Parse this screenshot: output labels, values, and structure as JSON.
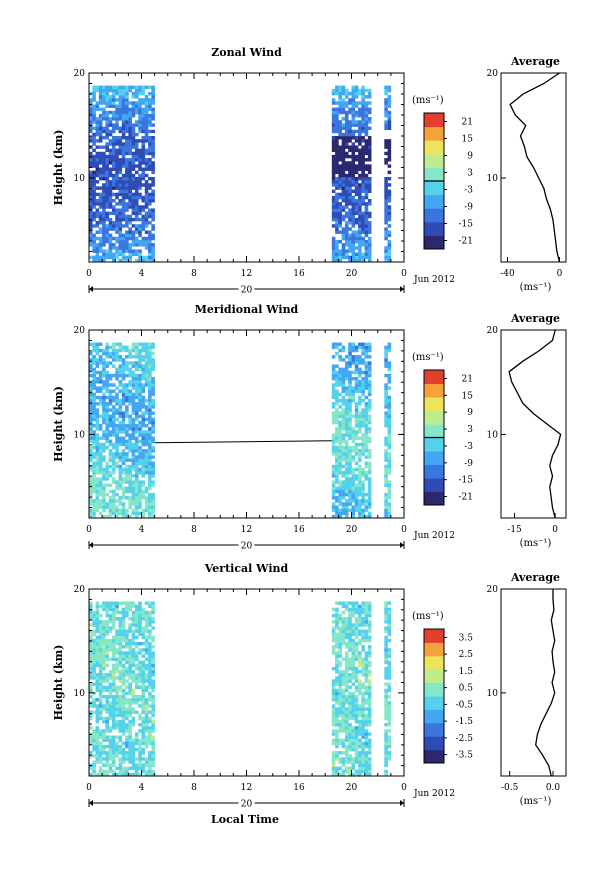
{
  "figure": {
    "xlabel": "Local Time",
    "date_axis": {
      "day_label": "20",
      "month_label": "Jun 2012"
    }
  },
  "chart_data": [
    {
      "type": "heatmap",
      "title": "Zonal Wind",
      "ylabel": "Height (km)",
      "xlabel": "",
      "x_ticks": [
        "0",
        "4",
        "8",
        "12",
        "16",
        "20",
        "0"
      ],
      "y_ticks": [
        "10",
        "20"
      ],
      "xlim": [
        0,
        24
      ],
      "ylim": [
        2,
        20
      ],
      "data_hours": [
        [
          0,
          5
        ],
        [
          18.5,
          21.5
        ],
        [
          22.5,
          23
        ]
      ],
      "colorbar": {
        "unit": "(ms⁻¹)",
        "ticks": [
          "21",
          "15",
          "9",
          "3",
          "-3",
          "-9",
          "-15",
          "-21"
        ],
        "range": [
          -24,
          24
        ]
      },
      "profile": {
        "title": "Average",
        "xlabel": "(ms⁻¹)",
        "x_ticks": [
          "-40",
          "0"
        ],
        "xlim": [
          -45,
          5
        ],
        "points": [
          [
            0,
            2
          ],
          [
            -2,
            3
          ],
          [
            -3,
            4
          ],
          [
            -4,
            5
          ],
          [
            -5,
            6
          ],
          [
            -7,
            7
          ],
          [
            -10,
            8
          ],
          [
            -12,
            9
          ],
          [
            -16,
            10
          ],
          [
            -20,
            11
          ],
          [
            -25,
            12
          ],
          [
            -27,
            13
          ],
          [
            -30,
            14
          ],
          [
            -26,
            15
          ],
          [
            -34,
            16
          ],
          [
            -38,
            17
          ],
          [
            -28,
            18
          ],
          [
            -12,
            19
          ],
          [
            0,
            20
          ]
        ]
      }
    },
    {
      "type": "heatmap",
      "title": "Meridional Wind",
      "ylabel": "Height (km)",
      "xlabel": "",
      "x_ticks": [
        "0",
        "4",
        "8",
        "12",
        "16",
        "20",
        "0"
      ],
      "y_ticks": [
        "10",
        "20"
      ],
      "xlim": [
        0,
        24
      ],
      "ylim": [
        2,
        20
      ],
      "data_hours": [
        [
          0,
          5
        ],
        [
          18.5,
          21.5
        ],
        [
          22.5,
          23
        ]
      ],
      "colorbar": {
        "unit": "(ms⁻¹)",
        "ticks": [
          "21",
          "15",
          "9",
          "3",
          "-3",
          "-9",
          "-15",
          "-21"
        ],
        "range": [
          -24,
          24
        ]
      },
      "profile": {
        "title": "Average",
        "xlabel": "(ms⁻¹)",
        "x_ticks": [
          "-15",
          "0"
        ],
        "xlim": [
          -20,
          4
        ],
        "points": [
          [
            0,
            2
          ],
          [
            -1,
            3
          ],
          [
            -1.5,
            4
          ],
          [
            -2,
            5
          ],
          [
            -1,
            6
          ],
          [
            -2,
            7
          ],
          [
            -1,
            8
          ],
          [
            1,
            9
          ],
          [
            2,
            10
          ],
          [
            -3,
            11
          ],
          [
            -8,
            12
          ],
          [
            -12,
            13
          ],
          [
            -14,
            14
          ],
          [
            -16,
            15
          ],
          [
            -17,
            16
          ],
          [
            -12,
            17
          ],
          [
            -6,
            18
          ],
          [
            -1,
            19
          ],
          [
            0,
            20
          ]
        ]
      }
    },
    {
      "type": "heatmap",
      "title": "Vertical Wind",
      "ylabel": "Height (km)",
      "xlabel": "Local Time",
      "x_ticks": [
        "0",
        "4",
        "8",
        "12",
        "16",
        "20",
        "0"
      ],
      "y_ticks": [
        "10",
        "20"
      ],
      "xlim": [
        0,
        24
      ],
      "ylim": [
        2,
        20
      ],
      "data_hours": [
        [
          0,
          5
        ],
        [
          18.5,
          21.5
        ],
        [
          22.5,
          23
        ]
      ],
      "colorbar": {
        "unit": "(ms⁻¹)",
        "ticks": [
          "3.5",
          "2.5",
          "1.5",
          "0.5",
          "-0.5",
          "-1.5",
          "-2.5",
          "-3.5"
        ],
        "range": [
          -4,
          4
        ]
      },
      "profile": {
        "title": "Average",
        "xlabel": "(ms⁻¹)",
        "x_ticks": [
          "-0.5",
          "0.0"
        ],
        "xlim": [
          -0.6,
          0.15
        ],
        "points": [
          [
            -0.02,
            2
          ],
          [
            -0.05,
            3
          ],
          [
            -0.12,
            4
          ],
          [
            -0.2,
            5
          ],
          [
            -0.18,
            6
          ],
          [
            -0.14,
            7
          ],
          [
            -0.08,
            8
          ],
          [
            -0.02,
            9
          ],
          [
            0.02,
            10
          ],
          [
            -0.01,
            11
          ],
          [
            0.02,
            12
          ],
          [
            0.0,
            13
          ],
          [
            -0.01,
            14
          ],
          [
            0.02,
            15
          ],
          [
            0.0,
            16
          ],
          [
            -0.02,
            17
          ],
          [
            0.01,
            18
          ],
          [
            0.0,
            19
          ],
          [
            0.0,
            20
          ]
        ]
      }
    }
  ]
}
